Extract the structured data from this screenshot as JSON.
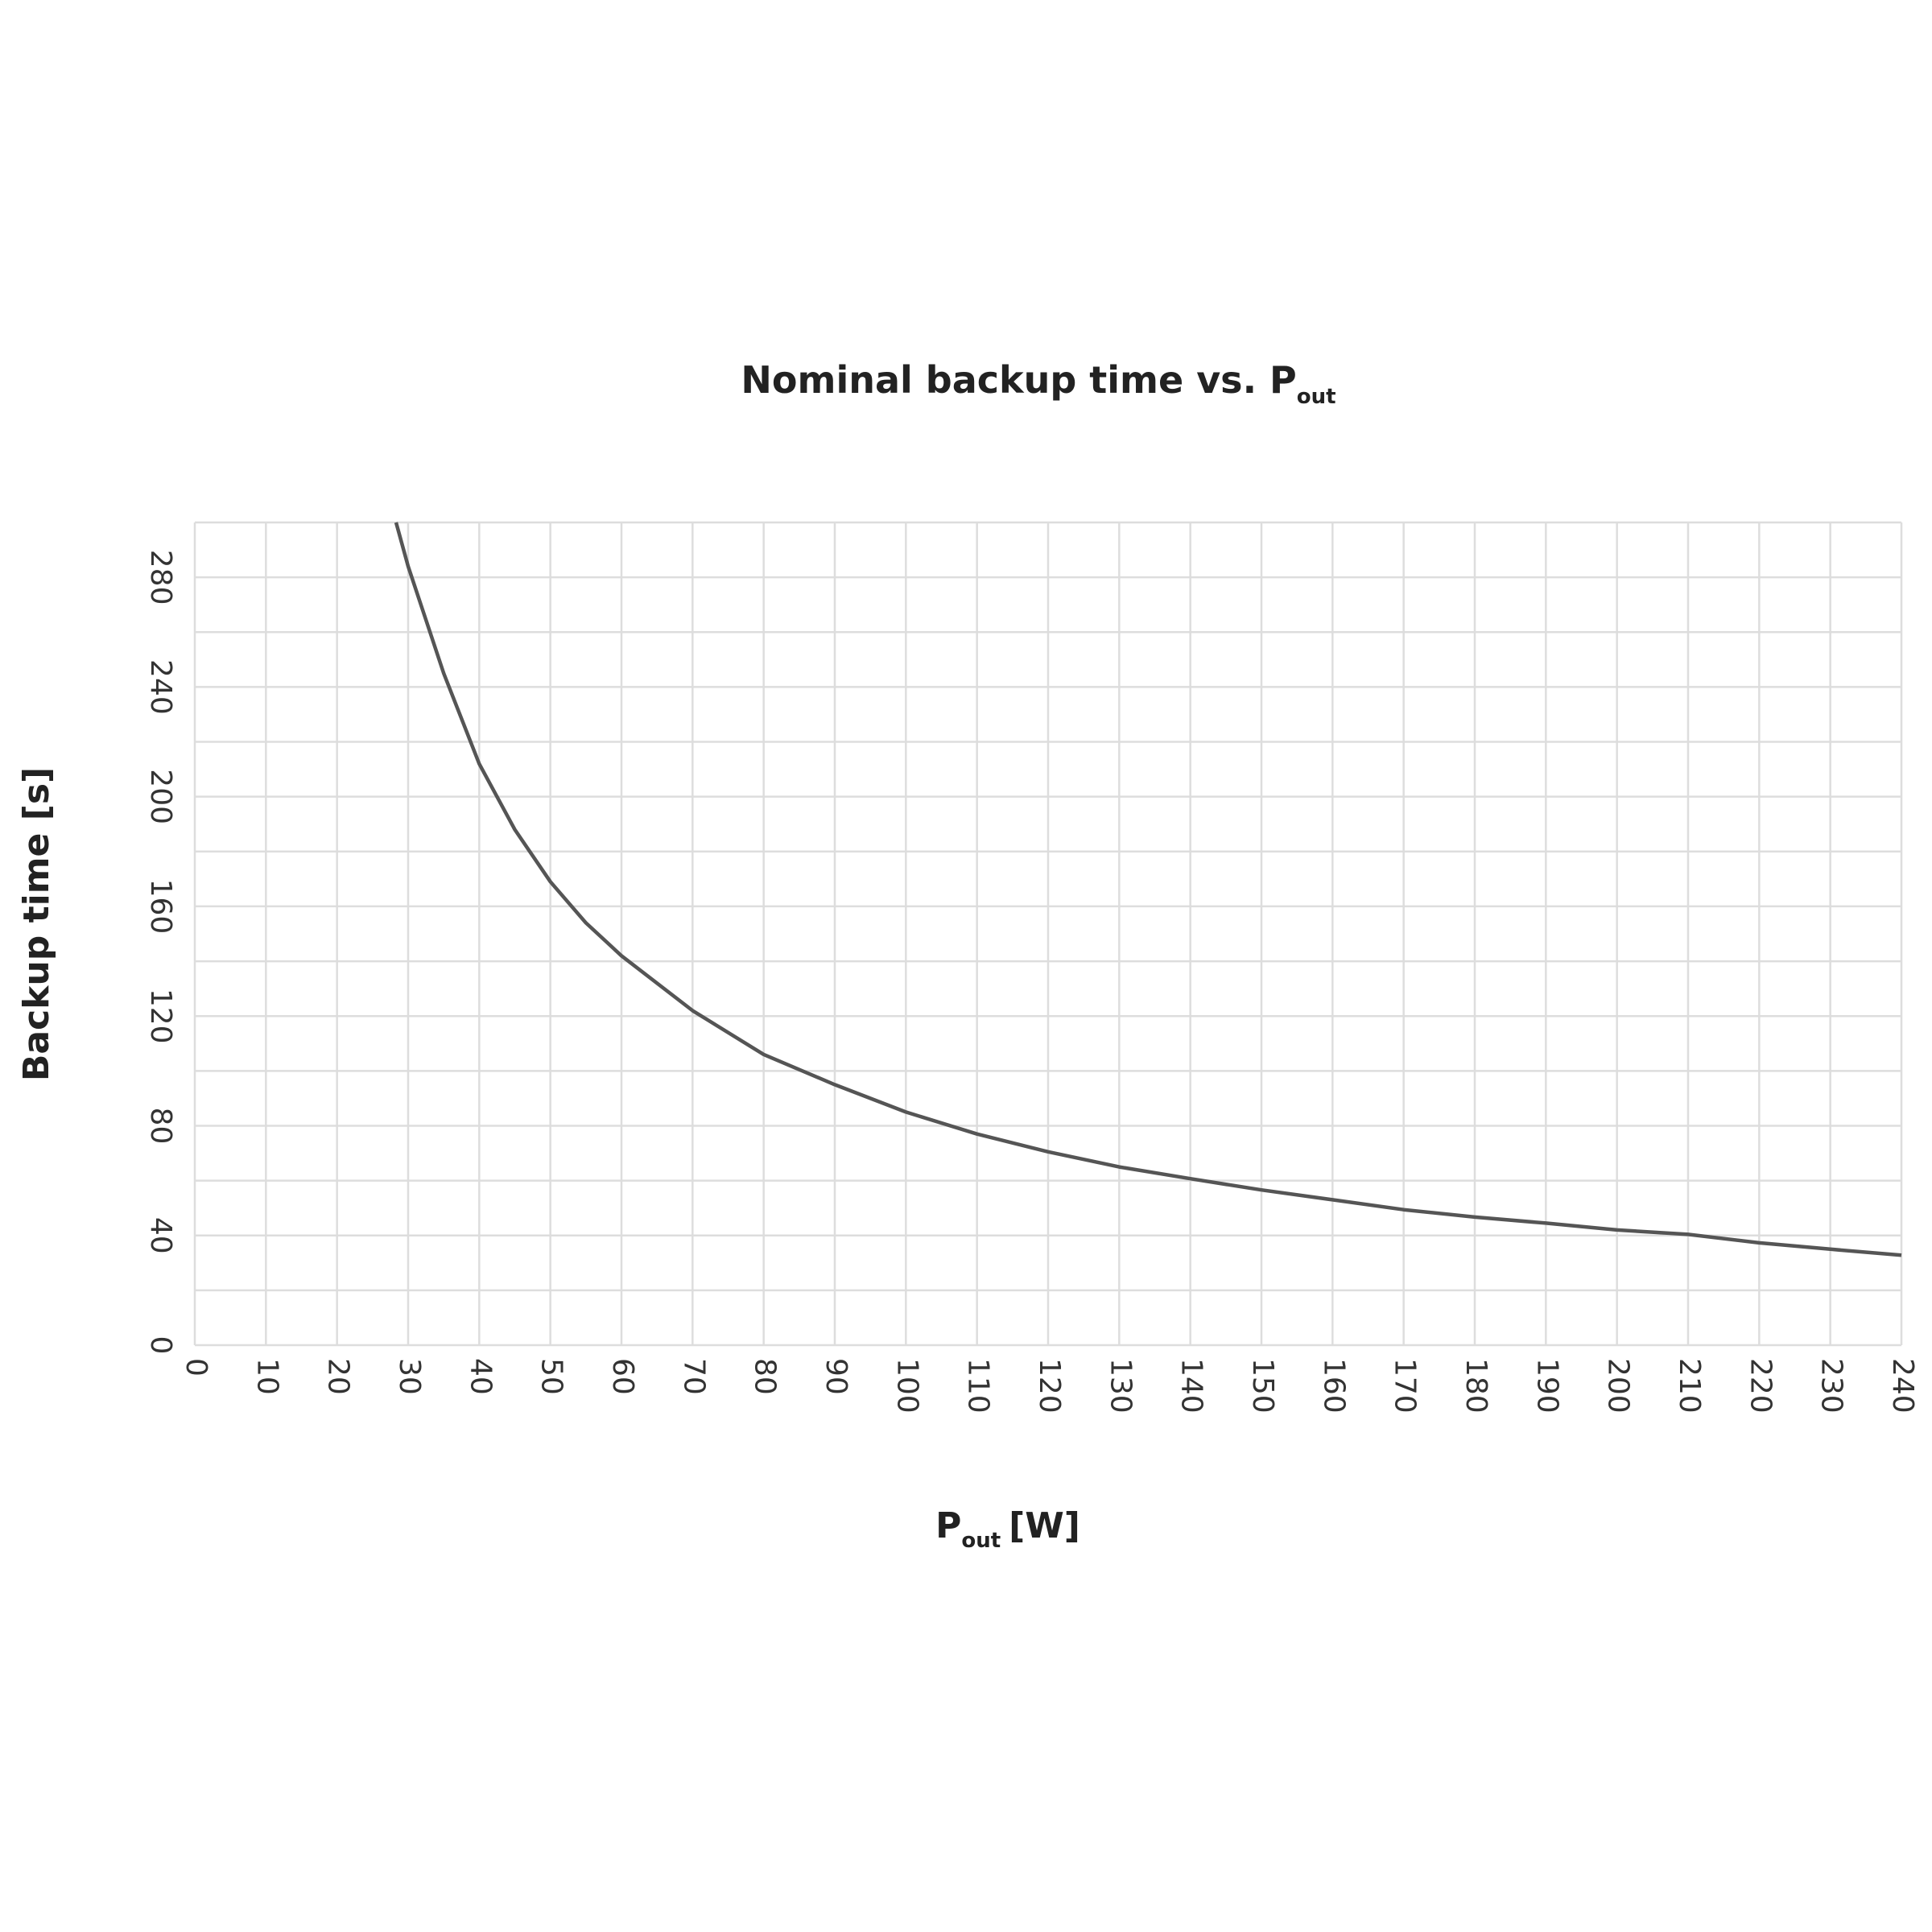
{
  "chart_data": {
    "type": "line",
    "title": "Nominal backup time vs. P",
    "title_subscript": "out",
    "x_label": "P",
    "x_label_subscript": "out",
    "x_label_suffix": "[W]",
    "y_label": "Backup time [s]",
    "x": [
      28.3,
      30,
      35,
      40,
      45,
      50,
      55,
      60,
      70,
      80,
      90,
      100,
      110,
      120,
      130,
      140,
      150,
      160,
      170,
      180,
      190,
      200,
      210,
      220,
      230,
      240
    ],
    "series": [
      {
        "color": "#555555",
        "values": [
          300,
          284,
          245,
          212,
          188,
          169,
          154,
          142,
          122,
          106,
          95,
          85,
          77,
          70.5,
          65,
          60.7,
          56.6,
          53,
          49.4,
          46.7,
          44.5,
          42,
          40.4,
          37.3,
          35,
          32.8
        ]
      }
    ],
    "xlim": [
      0,
      240
    ],
    "xticks": [
      0,
      10,
      20,
      30,
      40,
      50,
      60,
      70,
      80,
      90,
      100,
      110,
      120,
      130,
      140,
      150,
      160,
      170,
      180,
      190,
      200,
      210,
      220,
      230,
      240
    ],
    "ylim": [
      0,
      300
    ],
    "yticks": [
      0,
      40,
      80,
      120,
      160,
      200,
      240,
      280
    ],
    "y_minor_grid": [
      20,
      60,
      100,
      140,
      180,
      220,
      260,
      300
    ],
    "grid": true,
    "grid_color": "#dddddd"
  }
}
